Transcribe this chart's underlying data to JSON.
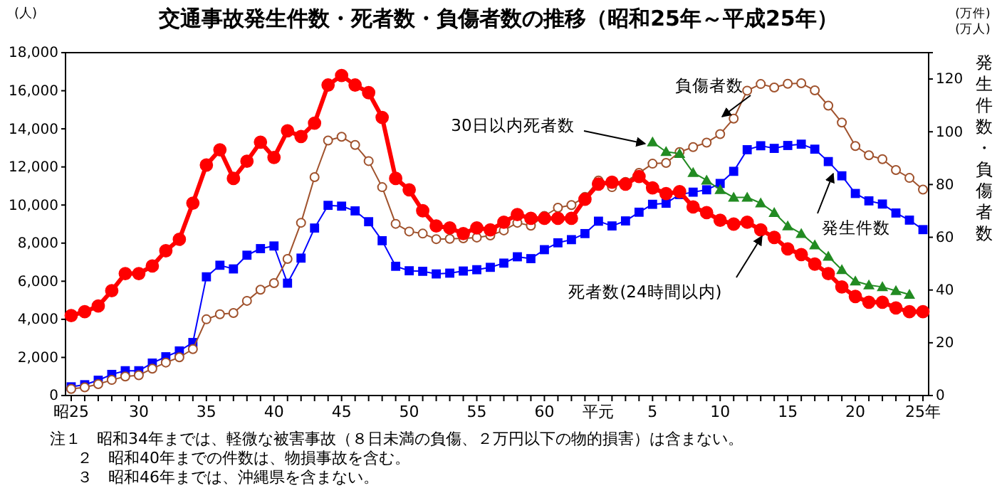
{
  "chart_data": {
    "type": "line",
    "title": "交通事故発生件数・死者数・負傷者数の推移（昭和25年～平成25年）",
    "ylabel": "(人)",
    "y2label": "発生件数・負傷者数",
    "annotations": [
      "(万件)",
      "(万人)",
      "注１　昭和34年までは、軽微な被害事故（８日未満の負傷、２万円以下の物的損害）は含まない。",
      "２　昭和40年までの件数は、物損事故を含む。",
      "３　昭和46年までは、沖縄県を含まない。"
    ],
    "categories": [
      "昭25",
      null,
      null,
      null,
      null,
      "30",
      null,
      null,
      null,
      null,
      "35",
      null,
      null,
      null,
      null,
      "40",
      null,
      null,
      null,
      null,
      "45",
      null,
      null,
      null,
      null,
      "50",
      null,
      null,
      null,
      null,
      "55",
      null,
      null,
      null,
      null,
      "60",
      null,
      null,
      null,
      "平元",
      null,
      null,
      null,
      "5",
      null,
      null,
      null,
      null,
      "10",
      null,
      null,
      null,
      null,
      "15",
      null,
      null,
      null,
      null,
      "20",
      null,
      null,
      null,
      null,
      "25年"
    ],
    "series": [
      {
        "name": "死者数(24時間以内)",
        "color": "#ff0000",
        "marker": "circle",
        "values": [
          4200,
          4400,
          4700,
          5500,
          6400,
          6400,
          6800,
          7600,
          8200,
          10100,
          12100,
          12900,
          11400,
          12300,
          13300,
          12500,
          13900,
          13600,
          14300,
          16300,
          16800,
          16300,
          15900,
          14600,
          11400,
          10800,
          9700,
          8900,
          8800,
          8500,
          8800,
          8700,
          9100,
          9500,
          9300,
          9300,
          9300,
          9300,
          10300,
          11100,
          11200,
          11100,
          11500,
          10900,
          10600,
          10700,
          9900,
          9600,
          9200,
          9000,
          9100,
          8700,
          8300,
          7700,
          7400,
          6900,
          6400,
          5700,
          5200,
          4900,
          4900,
          4600,
          4400,
          4400
        ]
      },
      {
        "name": "負傷者数",
        "color": "#a0522d",
        "marker": "circle",
        "axis": "y2",
        "values": [
          2.5,
          3.1,
          4.3,
          5.9,
          7.2,
          7.7,
          10.2,
          12.5,
          14.5,
          17.6,
          28.9,
          30.8,
          31.3,
          35.9,
          40.1,
          42.6,
          51.8,
          65.5,
          82.8,
          96.7,
          98.1,
          95.0,
          88.9,
          79.0,
          65.1,
          62.2,
          61.4,
          59.3,
          59.4,
          59.6,
          59.9,
          60.7,
          62.6,
          65.5,
          64.4,
          68.1,
          71.2,
          72.2,
          75.3,
          81.5,
          79.0,
          81.0,
          84.4,
          87.9,
          88.2,
          92.3,
          94.2,
          95.9,
          99.1,
          105.0,
          115.6,
          118.1,
          116.8,
          118.2,
          118.4,
          115.7,
          109.9,
          103.5,
          94.6,
          91.1,
          89.6,
          85.5,
          82.5,
          78.1
        ]
      },
      {
        "name": "発生件数",
        "color": "#0000ff",
        "marker": "square",
        "axis": "y2",
        "values": [
          3.3,
          4.1,
          5.8,
          8.0,
          9.4,
          9.4,
          12.3,
          14.7,
          16.9,
          20.1,
          45.0,
          49.4,
          48.0,
          53.2,
          55.7,
          56.7,
          42.6,
          52.1,
          63.5,
          72.1,
          71.8,
          70.0,
          65.9,
          58.7,
          49.0,
          47.3,
          47.1,
          46.1,
          46.4,
          47.2,
          47.7,
          48.6,
          50.2,
          52.6,
          51.9,
          55.3,
          57.9,
          59.1,
          61.4,
          66.1,
          64.3,
          66.2,
          69.5,
          72.5,
          72.9,
          76.2,
          77.1,
          78.0,
          80.4,
          85.0,
          93.2,
          94.7,
          93.7,
          94.8,
          95.3,
          93.4,
          88.7,
          83.3,
          76.6,
          73.8,
          72.6,
          69.2,
          66.5,
          62.9
        ]
      },
      {
        "name": "30日以内死者数",
        "color": "#228b22",
        "marker": "triangle",
        "values": [
          null,
          null,
          null,
          null,
          null,
          null,
          null,
          null,
          null,
          null,
          null,
          null,
          null,
          null,
          null,
          null,
          null,
          null,
          null,
          null,
          null,
          null,
          null,
          null,
          null,
          null,
          null,
          null,
          null,
          null,
          null,
          null,
          null,
          null,
          null,
          null,
          null,
          null,
          null,
          null,
          null,
          null,
          null,
          13300,
          12800,
          12700,
          11700,
          11300,
          10800,
          10400,
          10400,
          10100,
          9600,
          8900,
          8500,
          7900,
          7300,
          6600,
          6000,
          5800,
          5700,
          5500,
          5300,
          null
        ]
      }
    ],
    "ylim": [
      0,
      18000
    ],
    "yticks": [
      0,
      {
        "value": 2000,
        "label": "2,000"
      },
      {
        "value": 4000,
        "label": "4,000"
      },
      {
        "value": 6000,
        "label": "6,000"
      },
      {
        "value": 8000,
        "label": "8,000"
      },
      {
        "value": 10000,
        "label": "10,000"
      },
      {
        "value": 12000,
        "label": "12,000"
      },
      {
        "value": 14000,
        "label": "14,000"
      },
      {
        "value": 16000,
        "label": "16,000"
      },
      {
        "value": 18000,
        "label": "18,000"
      }
    ],
    "y2lim": [
      0,
      130
    ],
    "y2ticks": [
      0,
      20,
      40,
      60,
      80,
      100,
      120
    ]
  }
}
